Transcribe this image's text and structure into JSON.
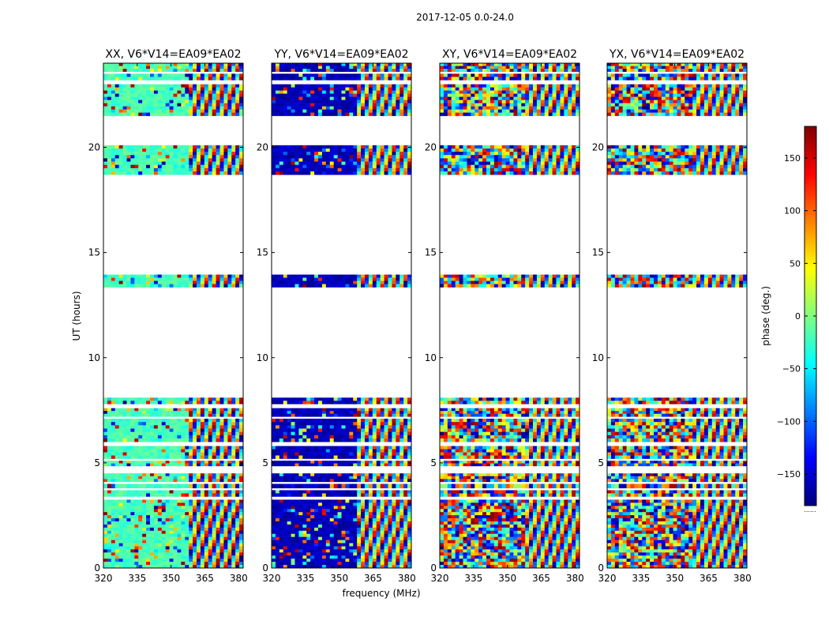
{
  "chart_data": {
    "type": "heatmap",
    "title": "2017-12-05 0.0-24.0",
    "xlabel": "frequency (MHz)",
    "ylabel": "UT (hours)",
    "xlim": [
      320,
      382
    ],
    "ylim": [
      0,
      24
    ],
    "xticks": [
      "320",
      "335",
      "350",
      "365",
      "380"
    ],
    "yticks": [
      "0",
      "5",
      "10",
      "15",
      "20"
    ],
    "panels": [
      {
        "title": "XX, V6*V14=EA09*EA02",
        "low_freq_phase_deg": -20
      },
      {
        "title": "YY, V6*V14=EA09*EA02",
        "low_freq_phase_deg": -160
      },
      {
        "title": "XY, V6*V14=EA09*EA02",
        "low_freq_phase_deg": null
      },
      {
        "title": "YX, V6*V14=EA09*EA02",
        "low_freq_phase_deg": null
      }
    ],
    "colorbar": {
      "label": "phase (deg.)",
      "range": [
        -180,
        180
      ],
      "ticks": [
        "150",
        "100",
        "50",
        "0",
        "−50",
        "−100",
        "−150"
      ],
      "tick_values": [
        150,
        100,
        50,
        0,
        -50,
        -100,
        -150
      ],
      "colormap": "jet",
      "footer": "......"
    },
    "data_blocks_ut_hours": [
      [
        0.0,
        3.25
      ],
      [
        3.4,
        3.7
      ],
      [
        3.8,
        4.0
      ],
      [
        4.1,
        4.5
      ],
      [
        4.85,
        5.1
      ],
      [
        5.2,
        5.8
      ],
      [
        6.0,
        7.1
      ],
      [
        7.2,
        7.6
      ],
      [
        7.8,
        8.1
      ],
      [
        13.35,
        13.95
      ],
      [
        18.7,
        20.1
      ],
      [
        21.5,
        23.0
      ],
      [
        23.2,
        23.5
      ],
      [
        23.6,
        24.0
      ]
    ]
  }
}
